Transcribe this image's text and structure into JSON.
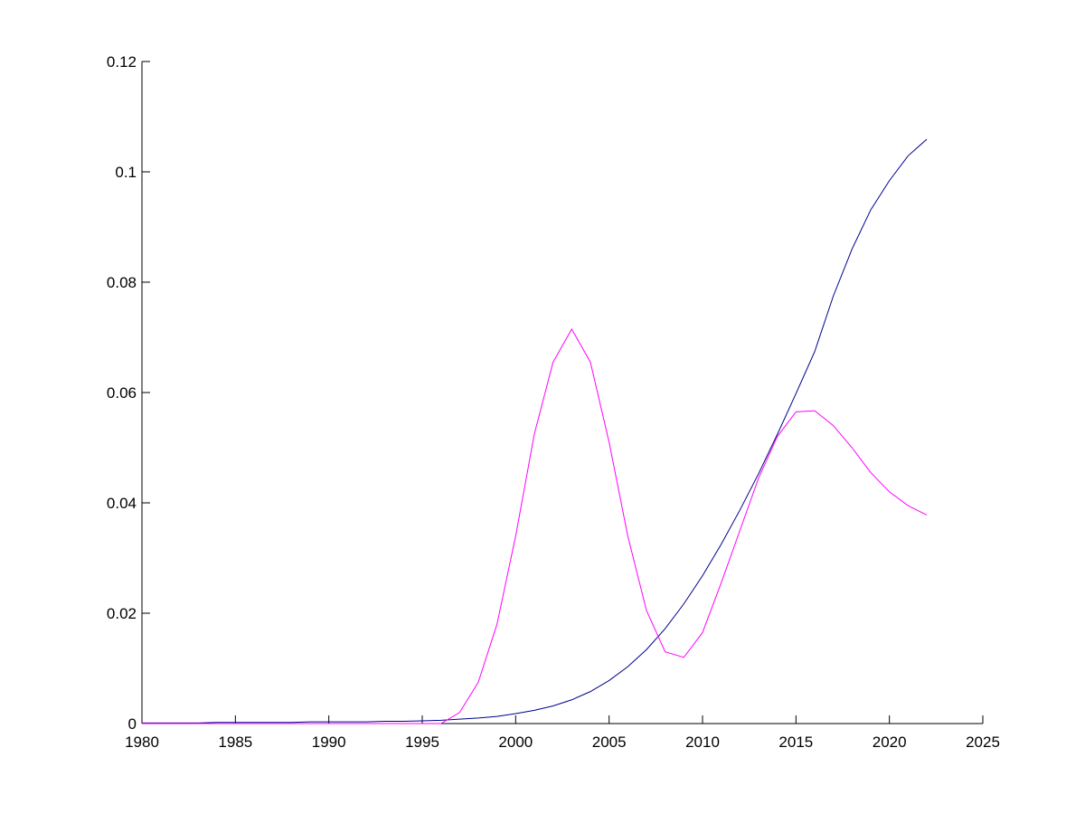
{
  "chart_data": {
    "type": "line",
    "x": [
      1980,
      1981,
      1982,
      1983,
      1984,
      1985,
      1986,
      1987,
      1988,
      1989,
      1990,
      1991,
      1992,
      1993,
      1994,
      1995,
      1996,
      1997,
      1998,
      1999,
      2000,
      2001,
      2002,
      2003,
      2004,
      2005,
      2006,
      2007,
      2008,
      2009,
      2010,
      2011,
      2012,
      2013,
      2014,
      2015,
      2016,
      2017,
      2018,
      2019,
      2020,
      2021,
      2022
    ],
    "series": [
      {
        "color": "#00008b",
        "values": [
          0.0001,
          0.0001,
          0.0001,
          0.0001,
          0.0002,
          0.0002,
          0.0002,
          0.0002,
          0.0002,
          0.0003,
          0.0003,
          0.0003,
          0.0003,
          0.0004,
          0.0004,
          0.0005,
          0.0006,
          0.0008,
          0.001,
          0.0013,
          0.0018,
          0.0024,
          0.0032,
          0.0043,
          0.0058,
          0.0078,
          0.0103,
          0.0134,
          0.0172,
          0.0217,
          0.0268,
          0.0325,
          0.0387,
          0.0453,
          0.0524,
          0.0598,
          0.0674,
          0.0775,
          0.086,
          0.0931,
          0.0984,
          0.1029,
          0.1059
        ]
      },
      {
        "color": "#ff00ff",
        "values": [
          0,
          0,
          0,
          0,
          0,
          0,
          0,
          0,
          0,
          0,
          0,
          0,
          0,
          0,
          0,
          0,
          0,
          0.002,
          0.0075,
          0.018,
          0.034,
          0.0525,
          0.0655,
          0.0715,
          0.0655,
          0.051,
          0.034,
          0.0205,
          0.013,
          0.012,
          0.0165,
          0.0255,
          0.035,
          0.0445,
          0.052,
          0.0565,
          0.0567,
          0.054,
          0.05,
          0.0455,
          0.042,
          0.0395,
          0.0378
        ]
      }
    ],
    "xlim": [
      1980,
      2025
    ],
    "xticks": [
      1980,
      1985,
      1990,
      1995,
      2000,
      2005,
      2010,
      2015,
      2020,
      2025
    ],
    "ylim": [
      0,
      0.12
    ],
    "yticks": [
      0,
      0.02,
      0.04,
      0.06,
      0.08,
      0.1,
      0.12
    ]
  }
}
